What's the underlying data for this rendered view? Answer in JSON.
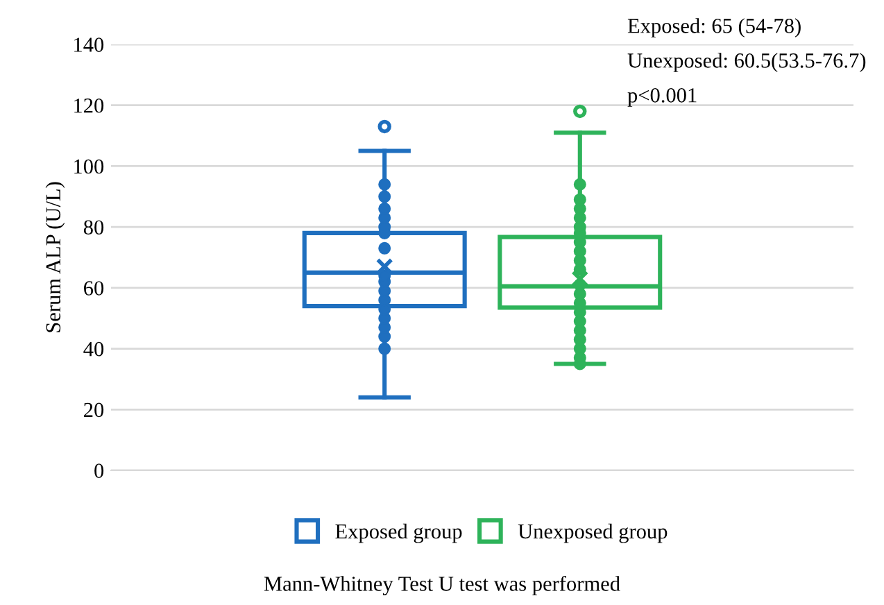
{
  "chart_data": {
    "type": "box",
    "categories": [
      null,
      null
    ],
    "ylabel": "Serum ALP (U/L)",
    "ylim": [
      0,
      140
    ],
    "yticks": [
      0,
      20,
      40,
      60,
      80,
      100,
      120,
      140
    ],
    "grid": "y",
    "legend": "bottom",
    "marker": "circle",
    "series": [
      {
        "name": "Exposed group",
        "color": "#1f6fbf",
        "boxes": [
          {
            "low": 24,
            "q1": 54,
            "median": 65,
            "q3": 78,
            "high": 105,
            "mean": 67,
            "outliers": [
              113
            ]
          },
          null
        ]
      },
      {
        "name": "Unexposed group",
        "color": "#2eb35a",
        "boxes": [
          null,
          {
            "low": 35,
            "q1": 53.5,
            "median": 60.5,
            "q3": 76.7,
            "high": 111,
            "mean": 63,
            "outliers": [
              118
            ]
          }
        ]
      },
      {
        "type": "scatter",
        "colors": [
          "#1f6fbf",
          "#2eb35a"
        ],
        "values": [
          40,
          35
        ]
      },
      {
        "type": "scatter",
        "colors": [
          "#1f6fbf",
          "#2eb35a"
        ],
        "values": [
          44,
          37
        ]
      },
      {
        "type": "scatter",
        "colors": [
          "#1f6fbf",
          "#2eb35a"
        ],
        "values": [
          47,
          40
        ]
      },
      {
        "type": "scatter",
        "colors": [
          "#1f6fbf",
          "#2eb35a"
        ],
        "values": [
          50,
          43
        ]
      },
      {
        "type": "scatter",
        "colors": [
          "#1f6fbf",
          "#2eb35a"
        ],
        "values": [
          53,
          46
        ]
      },
      {
        "type": "scatter",
        "colors": [
          "#1f6fbf",
          "#2eb35a"
        ],
        "values": [
          56,
          49
        ]
      },
      {
        "type": "scatter",
        "colors": [
          "#1f6fbf",
          "#2eb35a"
        ],
        "values": [
          59,
          52
        ]
      },
      {
        "type": "scatter",
        "colors": [
          "#1f6fbf",
          "#2eb35a"
        ],
        "values": [
          62,
          55
        ]
      },
      {
        "type": "scatter",
        "colors": [
          "#1f6fbf",
          "#2eb35a"
        ],
        "values": [
          64,
          58
        ]
      },
      {
        "type": "scatter",
        "colors": [
          "#1f6fbf",
          "#2eb35a"
        ],
        "values": [
          73,
          61
        ]
      },
      {
        "type": "scatter",
        "colors": [
          "#1f6fbf",
          "#2eb35a"
        ],
        "values": [
          78,
          66
        ]
      },
      {
        "type": "scatter",
        "colors": [
          "#1f6fbf",
          "#2eb35a"
        ],
        "values": [
          80,
          69
        ]
      },
      {
        "type": "scatter",
        "colors": [
          "#1f6fbf",
          "#2eb35a"
        ],
        "values": [
          83,
          72
        ]
      },
      {
        "type": "scatter",
        "colors": [
          "#1f6fbf",
          "#2eb35a"
        ],
        "values": [
          86,
          75
        ]
      },
      {
        "type": "scatter",
        "colors": [
          "#1f6fbf",
          "#2eb35a"
        ],
        "values": [
          90,
          78
        ]
      },
      {
        "type": "scatter",
        "colors": [
          "#1f6fbf",
          "#2eb35a"
        ],
        "values": [
          94,
          80
        ]
      },
      {
        "type": "scatter",
        "colors": [
          "#1f6fbf",
          "#2eb35a"
        ],
        "values": [
          null,
          83
        ]
      },
      {
        "type": "scatter",
        "colors": [
          "#1f6fbf",
          "#2eb35a"
        ],
        "values": [
          null,
          86
        ]
      },
      {
        "type": "scatter",
        "colors": [
          "#1f6fbf",
          "#2eb35a"
        ],
        "values": [
          null,
          89
        ]
      },
      {
        "type": "scatter",
        "colors": [
          "#1f6fbf",
          "#2eb35a"
        ],
        "values": [
          null,
          94
        ]
      }
    ],
    "annotations": [
      "Exposed: 65 (54-78)",
      "Unexposed: 60.5(53.5-76.7)",
      "p<0.001",
      "Mann-Whitney Test U test was performed"
    ]
  }
}
